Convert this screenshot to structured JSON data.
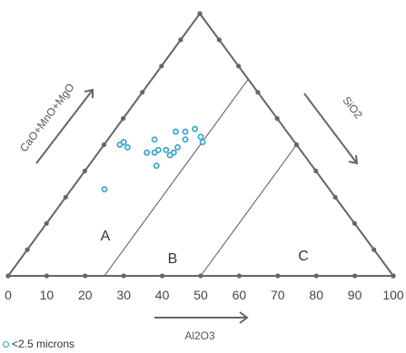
{
  "chart_data": {
    "type": "ternary",
    "bottom_axis": {
      "label": "Al2O3",
      "ticks": [
        "0",
        "10",
        "20",
        "30",
        "40",
        "50",
        "60",
        "70",
        "80",
        "90",
        "100"
      ]
    },
    "left_axis": {
      "label": "CaO+MnO+MgO"
    },
    "right_axis": {
      "label": "SiO2"
    },
    "region_labels": [
      "A",
      "B",
      "C"
    ],
    "boundaries_al2o3": [
      25,
      50
    ],
    "series": [
      {
        "name": "<2.5 microns",
        "color": "#29a3c8",
        "points": [
          {
            "al2o3": 25,
            "height": 0.33
          },
          {
            "al2o3": 29,
            "height": 0.5
          },
          {
            "al2o3": 30,
            "height": 0.51
          },
          {
            "al2o3": 31,
            "height": 0.49
          },
          {
            "al2o3": 36,
            "height": 0.47
          },
          {
            "al2o3": 38,
            "height": 0.47
          },
          {
            "al2o3": 38,
            "height": 0.52
          },
          {
            "al2o3": 38.5,
            "height": 0.42
          },
          {
            "al2o3": 39,
            "height": 0.48
          },
          {
            "al2o3": 41,
            "height": 0.48
          },
          {
            "al2o3": 42,
            "height": 0.46
          },
          {
            "al2o3": 43,
            "height": 0.47
          },
          {
            "al2o3": 44,
            "height": 0.49
          },
          {
            "al2o3": 43.5,
            "height": 0.55
          },
          {
            "al2o3": 46,
            "height": 0.52
          },
          {
            "al2o3": 46,
            "height": 0.55
          },
          {
            "al2o3": 48.5,
            "height": 0.56
          },
          {
            "al2o3": 50,
            "height": 0.53
          },
          {
            "al2o3": 50.5,
            "height": 0.51
          }
        ]
      }
    ]
  }
}
